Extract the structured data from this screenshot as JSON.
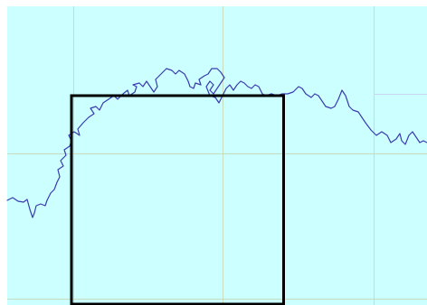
{
  "map": {
    "view": "map-overview",
    "background_color": "#ccffff",
    "margin_color": "#ffffff",
    "grid_color": "#c6dcc0",
    "grid_alt_color": "#c8d4f0",
    "coastline_color": "#3b3bb0",
    "selection_box_color": "#000000",
    "graticule": "on",
    "selection_box": "visible"
  }
}
